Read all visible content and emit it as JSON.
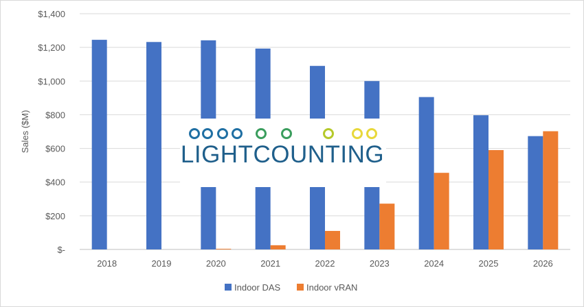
{
  "chart_data": {
    "type": "bar",
    "title": "",
    "ylabel": "Sales ($M)",
    "xlabel": "",
    "categories": [
      "2018",
      "2019",
      "2020",
      "2021",
      "2022",
      "2023",
      "2024",
      "2025",
      "2026"
    ],
    "ylim": [
      0,
      1400
    ],
    "yticks": [
      0,
      200,
      400,
      600,
      800,
      1000,
      1200,
      1400
    ],
    "ytick_labels": [
      "$-",
      "$200",
      "$400",
      "$600",
      "$800",
      "$1,000",
      "$1,200",
      "$1,400"
    ],
    "grid": true,
    "legend_position": "bottom",
    "series": [
      {
        "name": "Indoor DAS",
        "color": "#4472c4",
        "values": [
          1245,
          1232,
          1242,
          1193,
          1090,
          1000,
          905,
          797,
          673
        ]
      },
      {
        "name": "Indoor vRAN",
        "color": "#ed7d31",
        "values": [
          0,
          0,
          4,
          25,
          110,
          272,
          455,
          590,
          702
        ]
      }
    ]
  },
  "watermark": {
    "text": "LIGHTCOUNTING",
    "text_color": "#1f5f8b",
    "gradient_colors": [
      "#1f6fa3",
      "#3a9d5d",
      "#b5c92a",
      "#e8d83a"
    ]
  }
}
